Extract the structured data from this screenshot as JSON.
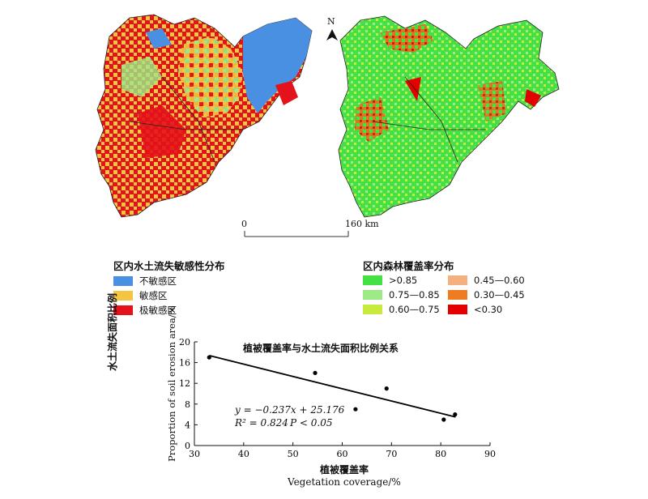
{
  "north_arrow": {
    "label": "N"
  },
  "scale_bar": {
    "start_label": "0",
    "end_label": "160 km"
  },
  "legend_sensitivity": {
    "title": "区内水土流失敏感性分布",
    "items": [
      {
        "label": "不敏感区",
        "color": "#4a90e2"
      },
      {
        "label": "敏感区",
        "color": "#f5c542"
      },
      {
        "label": "极敏感区",
        "color": "#e3121b"
      }
    ]
  },
  "legend_forest": {
    "title": "区内森林覆盖率分布",
    "items": [
      {
        "label": ">0.85",
        "color": "#44e044"
      },
      {
        "label": "0.75—0.85",
        "color": "#9eea86"
      },
      {
        "label": "0.60—0.75",
        "color": "#c8ea3c"
      },
      {
        "label": "0.45—0.60",
        "color": "#f4b07f"
      },
      {
        "label": "0.30—0.45",
        "color": "#ee7d22"
      },
      {
        "label": "<0.30",
        "color": "#e40000"
      }
    ]
  },
  "chart_data": {
    "type": "scatter",
    "title": "植被覆盖率与水土流失面积比例关系",
    "xlabel_cn": "植被覆盖率",
    "xlabel_en": "Vegetation coverage/%",
    "ylabel_cn": "水土流失面积比例",
    "ylabel_en": "Proportion of soil erosion area/%",
    "xlim": [
      30,
      90
    ],
    "ylim": [
      0,
      20
    ],
    "x_ticks": [
      30,
      40,
      50,
      60,
      70,
      80,
      90
    ],
    "y_ticks": [
      0,
      4,
      8,
      12,
      16,
      20
    ],
    "points": [
      {
        "x": 33.0,
        "y": 17.0
      },
      {
        "x": 54.5,
        "y": 14.0
      },
      {
        "x": 62.7,
        "y": 7.0
      },
      {
        "x": 69.0,
        "y": 11.0
      },
      {
        "x": 80.6,
        "y": 5.0
      },
      {
        "x": 82.9,
        "y": 6.0
      }
    ],
    "fit": {
      "slope": -0.237,
      "intercept": 25.176,
      "x_range": [
        33.0,
        83.0
      ]
    },
    "equation": "y = −0.237x + 25.176",
    "r2_text": "R² = 0.824",
    "p_text": "P < 0.05"
  }
}
